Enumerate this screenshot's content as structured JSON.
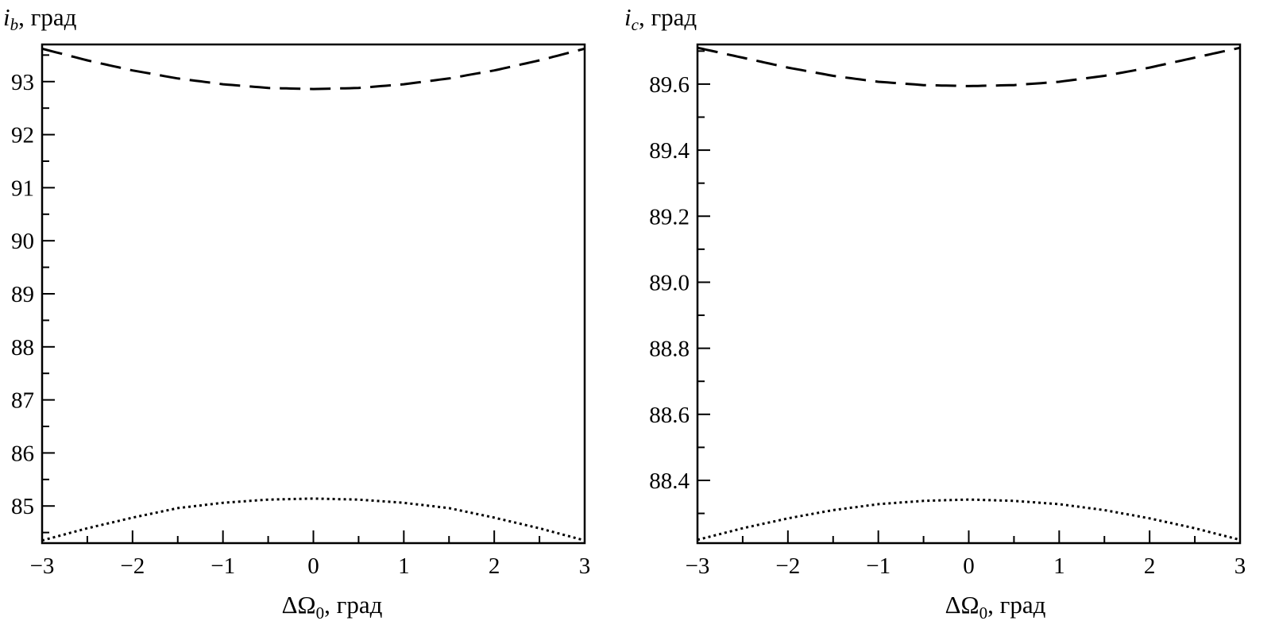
{
  "chart_data": [
    {
      "type": "line",
      "title": "",
      "ylabel_symbol": "i",
      "ylabel_subscript": "b",
      "ylabel_unit": ", град",
      "xlabel_symbol": "ΔΩ",
      "xlabel_subscript": "0",
      "xlabel_unit": ", град",
      "xlim": [
        -3,
        3
      ],
      "ylim": [
        84.3,
        93.7
      ],
      "x_ticks_major": [
        -3,
        -2,
        -1,
        0,
        1,
        2,
        3
      ],
      "x_tick_labels": [
        "−3",
        "−2",
        "−1",
        "0",
        "1",
        "2",
        "3"
      ],
      "x_ticks_minor_step": 0.5,
      "y_ticks_major": [
        85,
        86,
        87,
        88,
        89,
        90,
        91,
        92,
        93
      ],
      "y_tick_labels": [
        "85",
        "86",
        "87",
        "88",
        "89",
        "90",
        "91",
        "92",
        "93"
      ],
      "y_ticks_minor_step": 0.5,
      "grid": false,
      "series": [
        {
          "style": "dashed",
          "x": [
            -3,
            -2.5,
            -2,
            -1.5,
            -1,
            -0.5,
            0,
            0.5,
            1,
            1.5,
            2,
            2.5,
            3
          ],
          "y": [
            93.62,
            93.4,
            93.21,
            93.06,
            92.95,
            92.88,
            92.86,
            92.88,
            92.95,
            93.06,
            93.21,
            93.4,
            93.62
          ]
        },
        {
          "style": "dotted",
          "x": [
            -3,
            -2.5,
            -2,
            -1.5,
            -1,
            -0.5,
            0,
            0.5,
            1,
            1.5,
            2,
            2.5,
            3
          ],
          "y": [
            84.35,
            84.58,
            84.78,
            84.96,
            85.06,
            85.12,
            85.14,
            85.12,
            85.06,
            84.96,
            84.78,
            84.58,
            84.35
          ]
        }
      ]
    },
    {
      "type": "line",
      "title": "",
      "ylabel_symbol": "i",
      "ylabel_subscript": "c",
      "ylabel_unit": ", град",
      "xlabel_symbol": "ΔΩ",
      "xlabel_subscript": "0",
      "xlabel_unit": ", град",
      "xlim": [
        -3,
        3
      ],
      "ylim": [
        88.21,
        89.72
      ],
      "x_ticks_major": [
        -3,
        -2,
        -1,
        0,
        1,
        2,
        3
      ],
      "x_tick_labels": [
        "−3",
        "−2",
        "−1",
        "0",
        "1",
        "2",
        "3"
      ],
      "x_ticks_minor_step": 0.5,
      "y_ticks_major": [
        88.4,
        88.6,
        88.8,
        89.0,
        89.2,
        89.4,
        89.6
      ],
      "y_tick_labels": [
        "88.4",
        "88.6",
        "88.8",
        "89.0",
        "89.2",
        "89.4",
        "89.6"
      ],
      "y_ticks_minor_step": 0.1,
      "grid": false,
      "series": [
        {
          "style": "dashed",
          "x": [
            -3,
            -2.5,
            -2,
            -1.5,
            -1,
            -0.5,
            0,
            0.5,
            1,
            1.5,
            2,
            2.5,
            3
          ],
          "y": [
            89.71,
            89.68,
            89.65,
            89.625,
            89.607,
            89.597,
            89.594,
            89.597,
            89.607,
            89.625,
            89.65,
            89.68,
            89.71
          ]
        },
        {
          "style": "dotted",
          "x": [
            -3,
            -2.5,
            -2,
            -1.5,
            -1,
            -0.5,
            0,
            0.5,
            1,
            1.5,
            2,
            2.5,
            3
          ],
          "y": [
            88.22,
            88.255,
            88.285,
            88.31,
            88.328,
            88.338,
            88.342,
            88.338,
            88.328,
            88.31,
            88.285,
            88.255,
            88.22
          ]
        }
      ]
    }
  ]
}
